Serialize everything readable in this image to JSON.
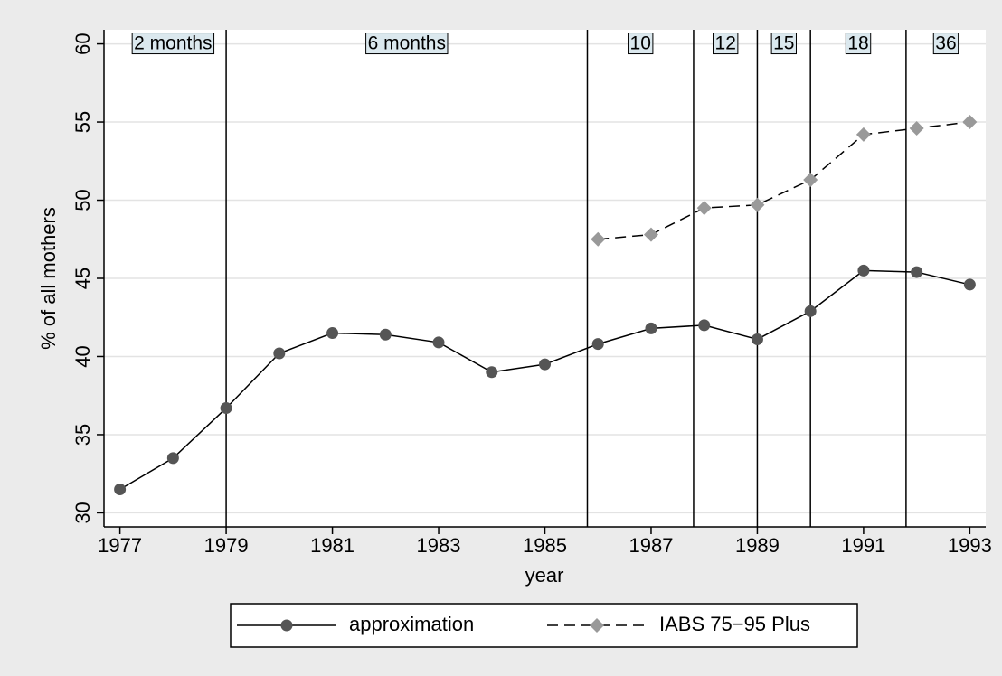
{
  "chart_data": {
    "type": "line",
    "y_label": "% of all mothers",
    "x_label": "year",
    "x": [
      1977,
      1978,
      1979,
      1980,
      1981,
      1982,
      1983,
      1984,
      1985,
      1986,
      1987,
      1988,
      1989,
      1990,
      1991,
      1992,
      1993
    ],
    "series": [
      {
        "name": "approximation",
        "color": "#555555",
        "marker": "circle",
        "dash": false,
        "values": [
          31.5,
          33.5,
          36.7,
          40.2,
          41.5,
          41.4,
          40.9,
          39.0,
          39.5,
          40.8,
          41.8,
          42.0,
          41.1,
          42.9,
          45.5,
          45.4,
          44.6
        ]
      },
      {
        "name": "IABS 75−95 Plus",
        "color": "#999999",
        "marker": "diamond",
        "dash": true,
        "values": [
          null,
          null,
          null,
          null,
          null,
          null,
          null,
          null,
          null,
          47.5,
          47.8,
          49.5,
          49.7,
          51.3,
          54.2,
          54.6,
          55.0
        ]
      }
    ],
    "policy_lines": [
      1979,
      1985.8,
      1987.8,
      1989,
      1990,
      1991.8
    ],
    "periods": [
      "2 months",
      "6 months",
      "10",
      "12",
      "15",
      "18",
      "36"
    ],
    "xlim": [
      1976.7,
      1993.3
    ],
    "ylim": [
      29.1,
      60.9
    ],
    "xticks": [
      1977,
      1979,
      1981,
      1983,
      1985,
      1987,
      1989,
      1991,
      1993
    ],
    "yticks": [
      30,
      35,
      40,
      45,
      50,
      55,
      60
    ],
    "grid": true,
    "legend": "bottom"
  }
}
